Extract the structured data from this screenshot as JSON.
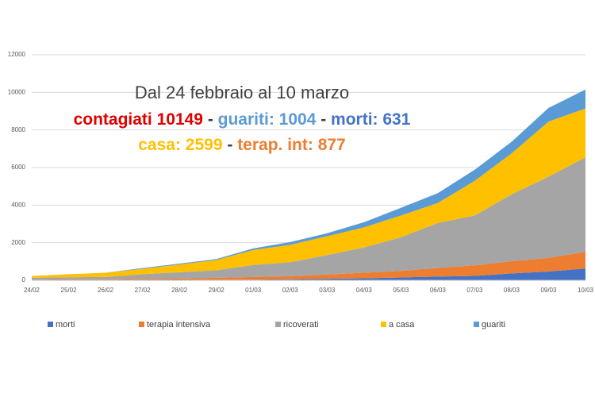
{
  "chart_data": {
    "type": "stacked-area",
    "categories": [
      "24/02",
      "25/02",
      "26/02",
      "27/02",
      "28/02",
      "29/02",
      "01/03",
      "02/03",
      "03/03",
      "04/03",
      "05/03",
      "06/03",
      "07/03",
      "08/03",
      "09/03",
      "10/03"
    ],
    "series": [
      {
        "name": "morti",
        "color": "#4472c4",
        "values": [
          7,
          10,
          12,
          17,
          21,
          29,
          34,
          52,
          79,
          107,
          148,
          197,
          233,
          366,
          463,
          631
        ]
      },
      {
        "name": "terapia intensiva",
        "color": "#ed7d31",
        "values": [
          26,
          35,
          36,
          56,
          64,
          105,
          140,
          166,
          229,
          295,
          351,
          462,
          567,
          650,
          733,
          877
        ]
      },
      {
        "name": "ricoverati",
        "color": "#a5a5a5",
        "values": [
          101,
          114,
          128,
          248,
          345,
          401,
          639,
          742,
          1034,
          1346,
          1790,
          2394,
          2651,
          3557,
          4316,
          5038
        ]
      },
      {
        "name": "a casa",
        "color": "#ffc000",
        "values": [
          94,
          162,
          221,
          284,
          412,
          543,
          798,
          927,
          1000,
          1065,
          1155,
          1060,
          1843,
          2180,
          2936,
          2599
        ]
      },
      {
        "name": "guariti",
        "color": "#5b9bd5",
        "values": [
          1,
          1,
          3,
          45,
          46,
          50,
          83,
          149,
          160,
          276,
          414,
          523,
          589,
          622,
          724,
          1004
        ]
      }
    ],
    "ylim": [
      0,
      12000
    ],
    "yticks": [
      0,
      2000,
      4000,
      6000,
      8000,
      10000,
      12000
    ],
    "grid": true,
    "legend": "bottom",
    "annotations": [
      {
        "parts": [
          {
            "text": "Dal 24 febbraio al 10 marzo",
            "color": "#404040"
          }
        ]
      },
      {
        "parts": [
          {
            "text": "contagiati 10149",
            "color": "#e00000"
          },
          {
            "text": " - ",
            "color": "#404040"
          },
          {
            "text": "guariti: 1004",
            "color": "#5b9bd5"
          },
          {
            "text": " - ",
            "color": "#404040"
          },
          {
            "text": "morti: 631",
            "color": "#4472c4"
          }
        ]
      },
      {
        "parts": [
          {
            "text": "casa: 2599",
            "color": "#ffc000"
          },
          {
            "text": " - ",
            "color": "#404040"
          },
          {
            "text": "terap. int: 877",
            "color": "#ed7d31"
          }
        ]
      }
    ]
  }
}
